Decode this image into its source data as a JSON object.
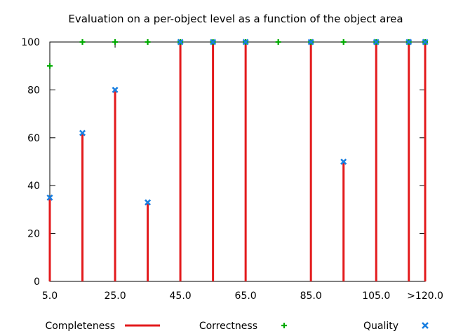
{
  "chart_data": {
    "type": "line",
    "title": "Evaluation on a per-object level as a function of the object area",
    "xlabel": "",
    "ylabel": "",
    "x_tick_labels": [
      "5.0",
      "25.0",
      "45.0",
      "65.0",
      "85.0",
      "105.0",
      ">120.0"
    ],
    "y_tick_labels": [
      "0",
      "20",
      "40",
      "60",
      "80",
      "100"
    ],
    "xlim": [
      5.0,
      120.0
    ],
    "ylim": [
      0,
      100
    ],
    "x_tick_values": [
      5.0,
      25.0,
      45.0,
      65.0,
      85.0,
      105.0,
      120.0
    ],
    "y_tick_values": [
      0,
      20,
      40,
      60,
      80,
      100
    ],
    "x": [
      5.0,
      15.0,
      25.0,
      35.0,
      45.0,
      55.0,
      65.0,
      75.0,
      85.0,
      95.0,
      105.0,
      115.0,
      120.0
    ],
    "grid": false,
    "legend_position": "bottom",
    "series": [
      {
        "name": "Completeness",
        "style": "impulses",
        "color": "#e31a1c",
        "values": [
          35,
          62,
          80,
          33,
          100,
          100,
          100,
          0,
          100,
          50,
          100,
          100,
          100
        ]
      },
      {
        "name": "Correctness",
        "style": "points-plus",
        "color": "#00aa00",
        "values": [
          90,
          100,
          100,
          100,
          100,
          100,
          100,
          100,
          100,
          100,
          100,
          100,
          100
        ]
      },
      {
        "name": "Quality",
        "style": "points-cross",
        "color": "#1a7fe0",
        "values": [
          35,
          62,
          80,
          33,
          100,
          100,
          100,
          null,
          100,
          50,
          100,
          100,
          100
        ]
      }
    ]
  }
}
